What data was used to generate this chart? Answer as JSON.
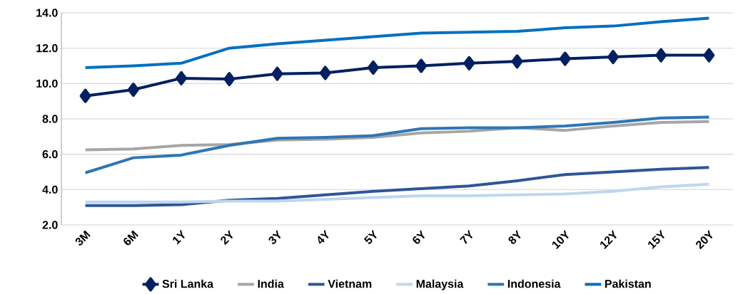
{
  "chart_data": {
    "type": "line",
    "categories": [
      "3M",
      "6M",
      "1Y",
      "2Y",
      "3Y",
      "4Y",
      "5Y",
      "6Y",
      "7Y",
      "8Y",
      "10Y",
      "12Y",
      "15Y",
      "20Y"
    ],
    "series": [
      {
        "name": "Sri Lanka",
        "color": "#002060",
        "marker": "diamond",
        "values": [
          9.3,
          9.65,
          10.3,
          10.25,
          10.55,
          10.6,
          10.9,
          11.0,
          11.15,
          11.25,
          11.4,
          11.5,
          11.6,
          11.6
        ]
      },
      {
        "name": "India",
        "color": "#a6a6a6",
        "marker": "none",
        "values": [
          6.25,
          6.3,
          6.5,
          6.55,
          6.8,
          6.85,
          6.95,
          7.2,
          7.3,
          7.5,
          7.35,
          7.6,
          7.8,
          7.85
        ]
      },
      {
        "name": "Vietnam",
        "color": "#2f5597",
        "marker": "none",
        "values": [
          3.1,
          3.1,
          3.15,
          3.4,
          3.5,
          3.7,
          3.9,
          4.05,
          4.2,
          4.5,
          4.85,
          5.0,
          5.15,
          5.25
        ]
      },
      {
        "name": "Malaysia",
        "color": "#bdd7ee",
        "marker": "none",
        "values": [
          3.3,
          3.3,
          3.3,
          3.35,
          3.35,
          3.45,
          3.55,
          3.65,
          3.65,
          3.7,
          3.75,
          3.9,
          4.15,
          4.3
        ]
      },
      {
        "name": "Indonesia",
        "color": "#2e75b6",
        "marker": "none",
        "values": [
          4.95,
          5.8,
          5.95,
          6.5,
          6.9,
          6.95,
          7.05,
          7.45,
          7.5,
          7.5,
          7.6,
          7.8,
          8.05,
          8.1
        ]
      },
      {
        "name": "Pakistan",
        "color": "#0070c0",
        "marker": "none",
        "values": [
          10.9,
          11.0,
          11.15,
          12.0,
          12.25,
          12.45,
          12.65,
          12.85,
          12.9,
          12.95,
          13.15,
          13.25,
          13.5,
          13.7
        ]
      }
    ],
    "ylim": [
      2,
      14
    ],
    "yticks": [
      {
        "value": 2,
        "label": "2.0"
      },
      {
        "value": 4,
        "label": "4.0"
      },
      {
        "value": 6,
        "label": "6.0"
      },
      {
        "value": 8,
        "label": "8.0"
      },
      {
        "value": 10,
        "label": "10.0"
      },
      {
        "value": 12,
        "label": "12.0"
      },
      {
        "value": 14,
        "label": "14.0"
      }
    ],
    "grid": "y",
    "legend": "bottom"
  }
}
